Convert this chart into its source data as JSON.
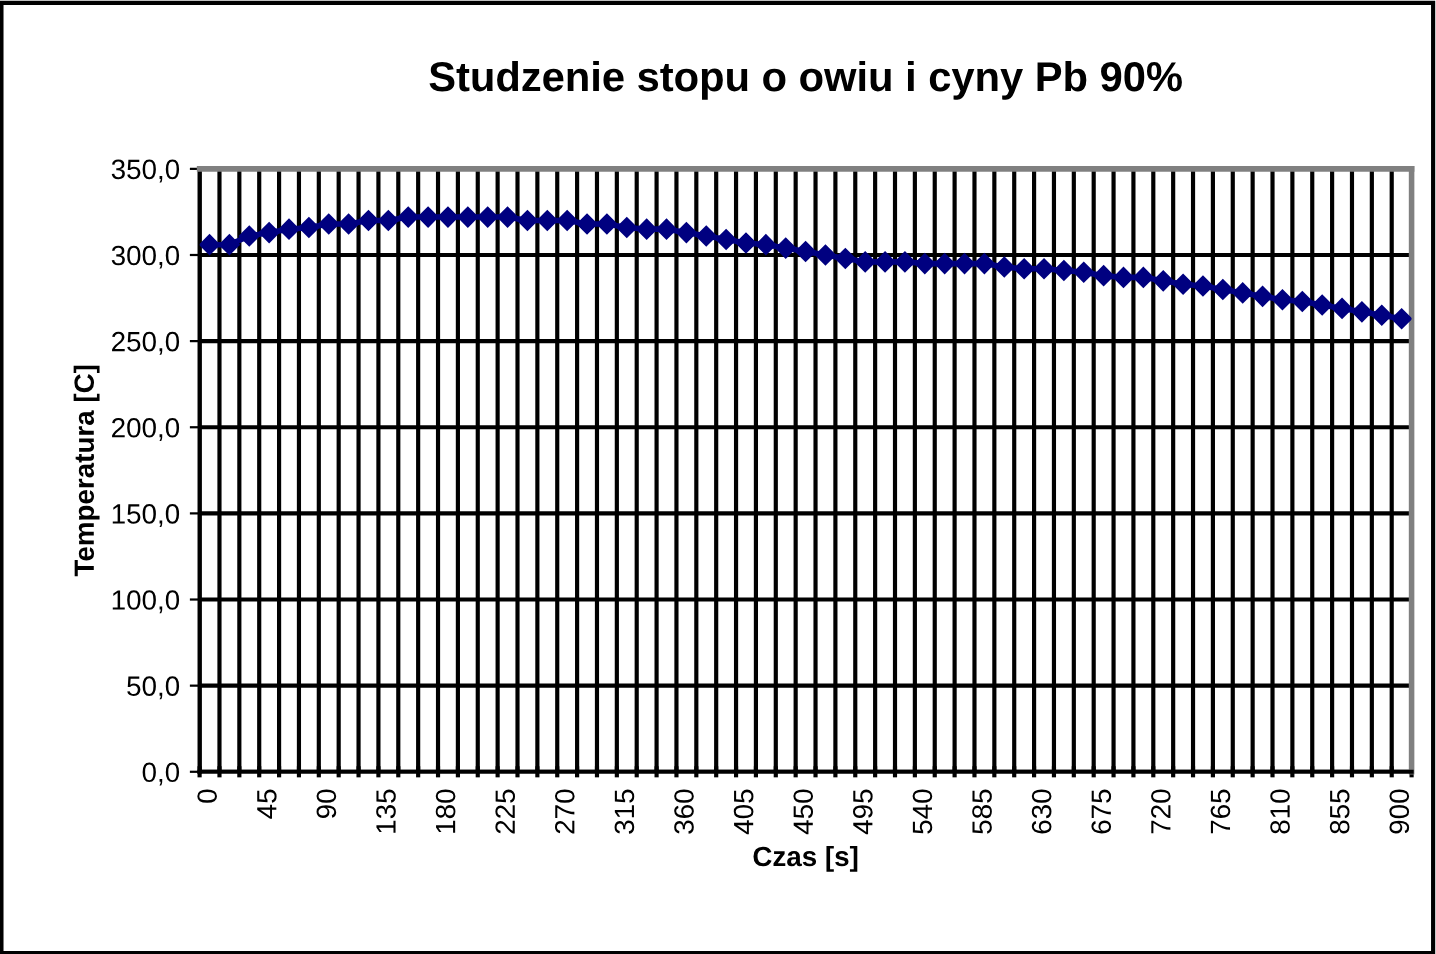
{
  "chart_data": {
    "type": "line",
    "title": "Studzenie stopu o owiu i cyny Pb 90%",
    "xlabel": "Czas [s]",
    "ylabel": "Temperatura [C]",
    "categories": [
      "0",
      null,
      null,
      "45",
      null,
      null,
      "90",
      null,
      null,
      "135",
      null,
      null,
      "180",
      null,
      null,
      "225",
      null,
      null,
      "270",
      null,
      null,
      "315",
      null,
      null,
      "360",
      null,
      null,
      "405",
      null,
      null,
      "450",
      null,
      null,
      "495",
      null,
      null,
      "540",
      null,
      null,
      "585",
      null,
      null,
      "630",
      null,
      null,
      "675",
      null,
      null,
      "720",
      null,
      null,
      "765",
      null,
      null,
      "810",
      null,
      null,
      "855",
      null,
      null,
      "900"
    ],
    "series": [
      {
        "color": "#000080",
        "values": [
          306,
          306,
          311,
          313,
          315,
          316,
          318,
          318,
          320,
          320,
          322,
          322,
          322,
          322,
          322,
          322,
          320,
          320,
          320,
          318,
          318,
          316,
          315,
          315,
          313,
          311,
          309,
          307,
          306,
          304,
          302,
          300,
          298,
          296,
          296,
          296,
          295,
          295,
          295,
          295,
          293,
          292,
          292,
          291,
          290,
          288,
          287,
          287,
          285,
          283,
          282,
          280,
          278,
          276,
          274,
          273,
          271,
          269,
          267,
          265,
          263
        ]
      }
    ],
    "ylim": [
      0,
      350
    ],
    "yticks": [
      {
        "value": 0,
        "label": "0,0"
      },
      {
        "value": 50,
        "label": "50,0"
      },
      {
        "value": 100,
        "label": "100,0"
      },
      {
        "value": 150,
        "label": "150,0"
      },
      {
        "value": 200,
        "label": "200,0"
      },
      {
        "value": 250,
        "label": "250,0"
      },
      {
        "value": 300,
        "label": "300,0"
      },
      {
        "value": 350,
        "label": "350,0"
      }
    ],
    "grid": true,
    "marker": "diamond",
    "line_style": "solid",
    "legend": false
  }
}
